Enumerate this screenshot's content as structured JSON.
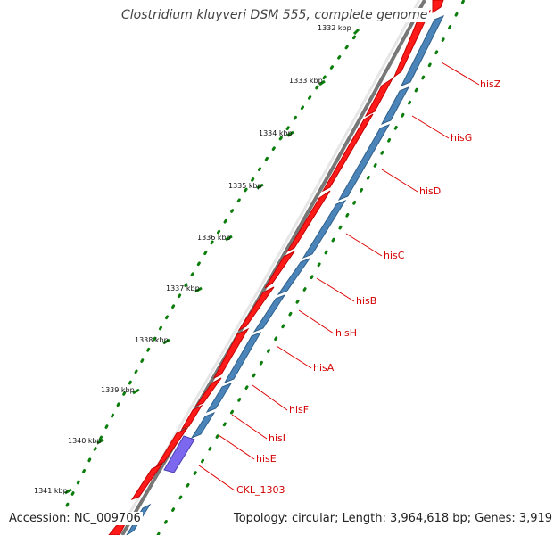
{
  "title": "Clostridium kluyveri DSM 555, complete genome",
  "accession": "Accession: NC_009706",
  "topology": "Topology: circular; Length: 3,964,618 bp; Genes: 3,919",
  "ticks": [
    "1332 kbp",
    "1333 kbp",
    "1334 kbp",
    "1335 kbp",
    "1336 kbp",
    "1337 kbp",
    "1338 kbp",
    "1339 kbp",
    "1340 kbp",
    "1341 kbp"
  ],
  "genes": [
    "hisZ",
    "hisG",
    "hisD",
    "hisC",
    "hisB",
    "hisH",
    "hisA",
    "hisF",
    "hisI",
    "hisE",
    "CKL_1303"
  ],
  "colors": {
    "forward_feature": "#ff0000",
    "cds": "#4682b4",
    "selected_cds": "#7b68ee",
    "gene_label": "#cc0000",
    "tick_dots": "#006400",
    "backbone": "#808080"
  }
}
